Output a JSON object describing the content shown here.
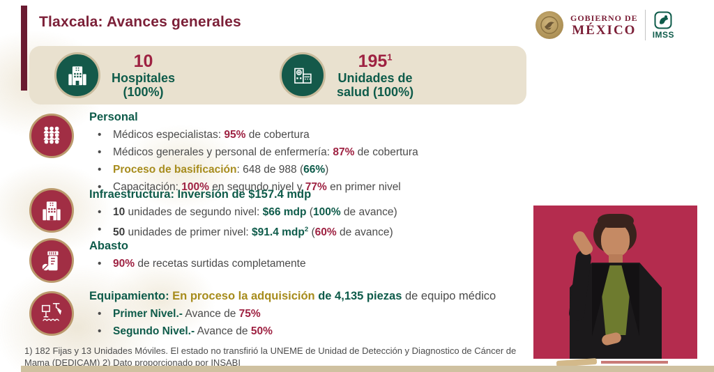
{
  "colors": {
    "maroon": "#7c2038",
    "maroon-dark": "#6a1b31",
    "red": "#9e2242",
    "green": "#0e5b4a",
    "gold": "#a78c1d",
    "banner-beige": "#e9e1cf",
    "circle-red": "#a12e44",
    "circle-green": "#14594a",
    "video-crimson": "#b42c4e"
  },
  "header": {
    "title": "Tlaxcala: Avances generales",
    "gobierno_line1": "GOBIERNO DE",
    "gobierno_line2": "MÉXICO",
    "imss_label": "IMSS"
  },
  "stats": [
    {
      "value": "10",
      "sup": "",
      "label_line1": "Hospitales",
      "label_line2": "(100%)"
    },
    {
      "value": "195",
      "sup": "1",
      "label_line1": "Unidades de",
      "label_line2": "salud (100%)"
    }
  ],
  "sections": [
    {
      "icon": "people-icon",
      "title_segments": [
        {
          "t": "Personal",
          "c": "green"
        }
      ],
      "bullets": [
        [
          {
            "t": "Médicos especialistas: "
          },
          {
            "t": "95%",
            "c": "red"
          },
          {
            "t": " de cobertura"
          }
        ],
        [
          {
            "t": "Médicos generales y personal de enfermería: "
          },
          {
            "t": "87%",
            "c": "red"
          },
          {
            "t": " de cobertura"
          }
        ],
        [
          {
            "t": "Proceso de basificación",
            "c": "gold"
          },
          {
            "t": ": 648 de 988 ("
          },
          {
            "t": "66%",
            "c": "green"
          },
          {
            "t": ")"
          }
        ],
        [
          {
            "t": "Capacitación: "
          },
          {
            "t": "100%",
            "c": "red"
          },
          {
            "t": " en segundo nivel y "
          },
          {
            "t": "77%",
            "c": "red"
          },
          {
            "t": " en primer nivel"
          }
        ]
      ]
    },
    {
      "icon": "hospital-icon",
      "title_segments": [
        {
          "t": "Infraestructura: Inversión de $157.4 mdp",
          "c": "green"
        }
      ],
      "bullets": [
        [
          {
            "t": "10",
            "c": "dark"
          },
          {
            "t": " unidades de segundo nivel: "
          },
          {
            "t": "$66 mdp",
            "c": "green"
          },
          {
            "t": " ("
          },
          {
            "t": "100%",
            "c": "green"
          },
          {
            "t": " de avance)"
          }
        ],
        [
          {
            "t": "50",
            "c": "dark"
          },
          {
            "t": " unidades de primer nivel: "
          },
          {
            "t": "$91.4 mdp",
            "c": "green"
          },
          {
            "t": "2",
            "c": "green",
            "sup": true
          },
          {
            "t": " ("
          },
          {
            "t": "60%",
            "c": "red"
          },
          {
            "t": " de avance)"
          }
        ]
      ]
    },
    {
      "icon": "medicine-icon",
      "title_segments": [
        {
          "t": "Abasto",
          "c": "green"
        }
      ],
      "bullets": [
        [
          {
            "t": "90%",
            "c": "red"
          },
          {
            "t": " de recetas surtidas completamente"
          }
        ]
      ]
    },
    {
      "icon": "equipment-icon",
      "title_segments": [
        {
          "t": "Equipamiento: ",
          "c": "green"
        },
        {
          "t": "En proceso la adquisición ",
          "c": "gold"
        },
        {
          "t": "de 4,135 piezas",
          "c": "green"
        },
        {
          "t": " de equipo médico",
          "c": "plain"
        }
      ],
      "bullets": [
        [
          {
            "t": "Primer Nivel.-",
            "c": "green"
          },
          {
            "t": " Avance de "
          },
          {
            "t": "75%",
            "c": "red"
          }
        ],
        [
          {
            "t": "Segundo Nivel.-",
            "c": "green"
          },
          {
            "t": " Avance de "
          },
          {
            "t": "50%",
            "c": "red"
          }
        ]
      ]
    }
  ],
  "footnote": "1) 182 Fijas y 13 Unidades Móviles. El estado no transfirió la UNEME de Unidad de Detección y Diagnostico de Cáncer de Mama (DEDICAM)  2) Dato proporcionado por INSABI"
}
